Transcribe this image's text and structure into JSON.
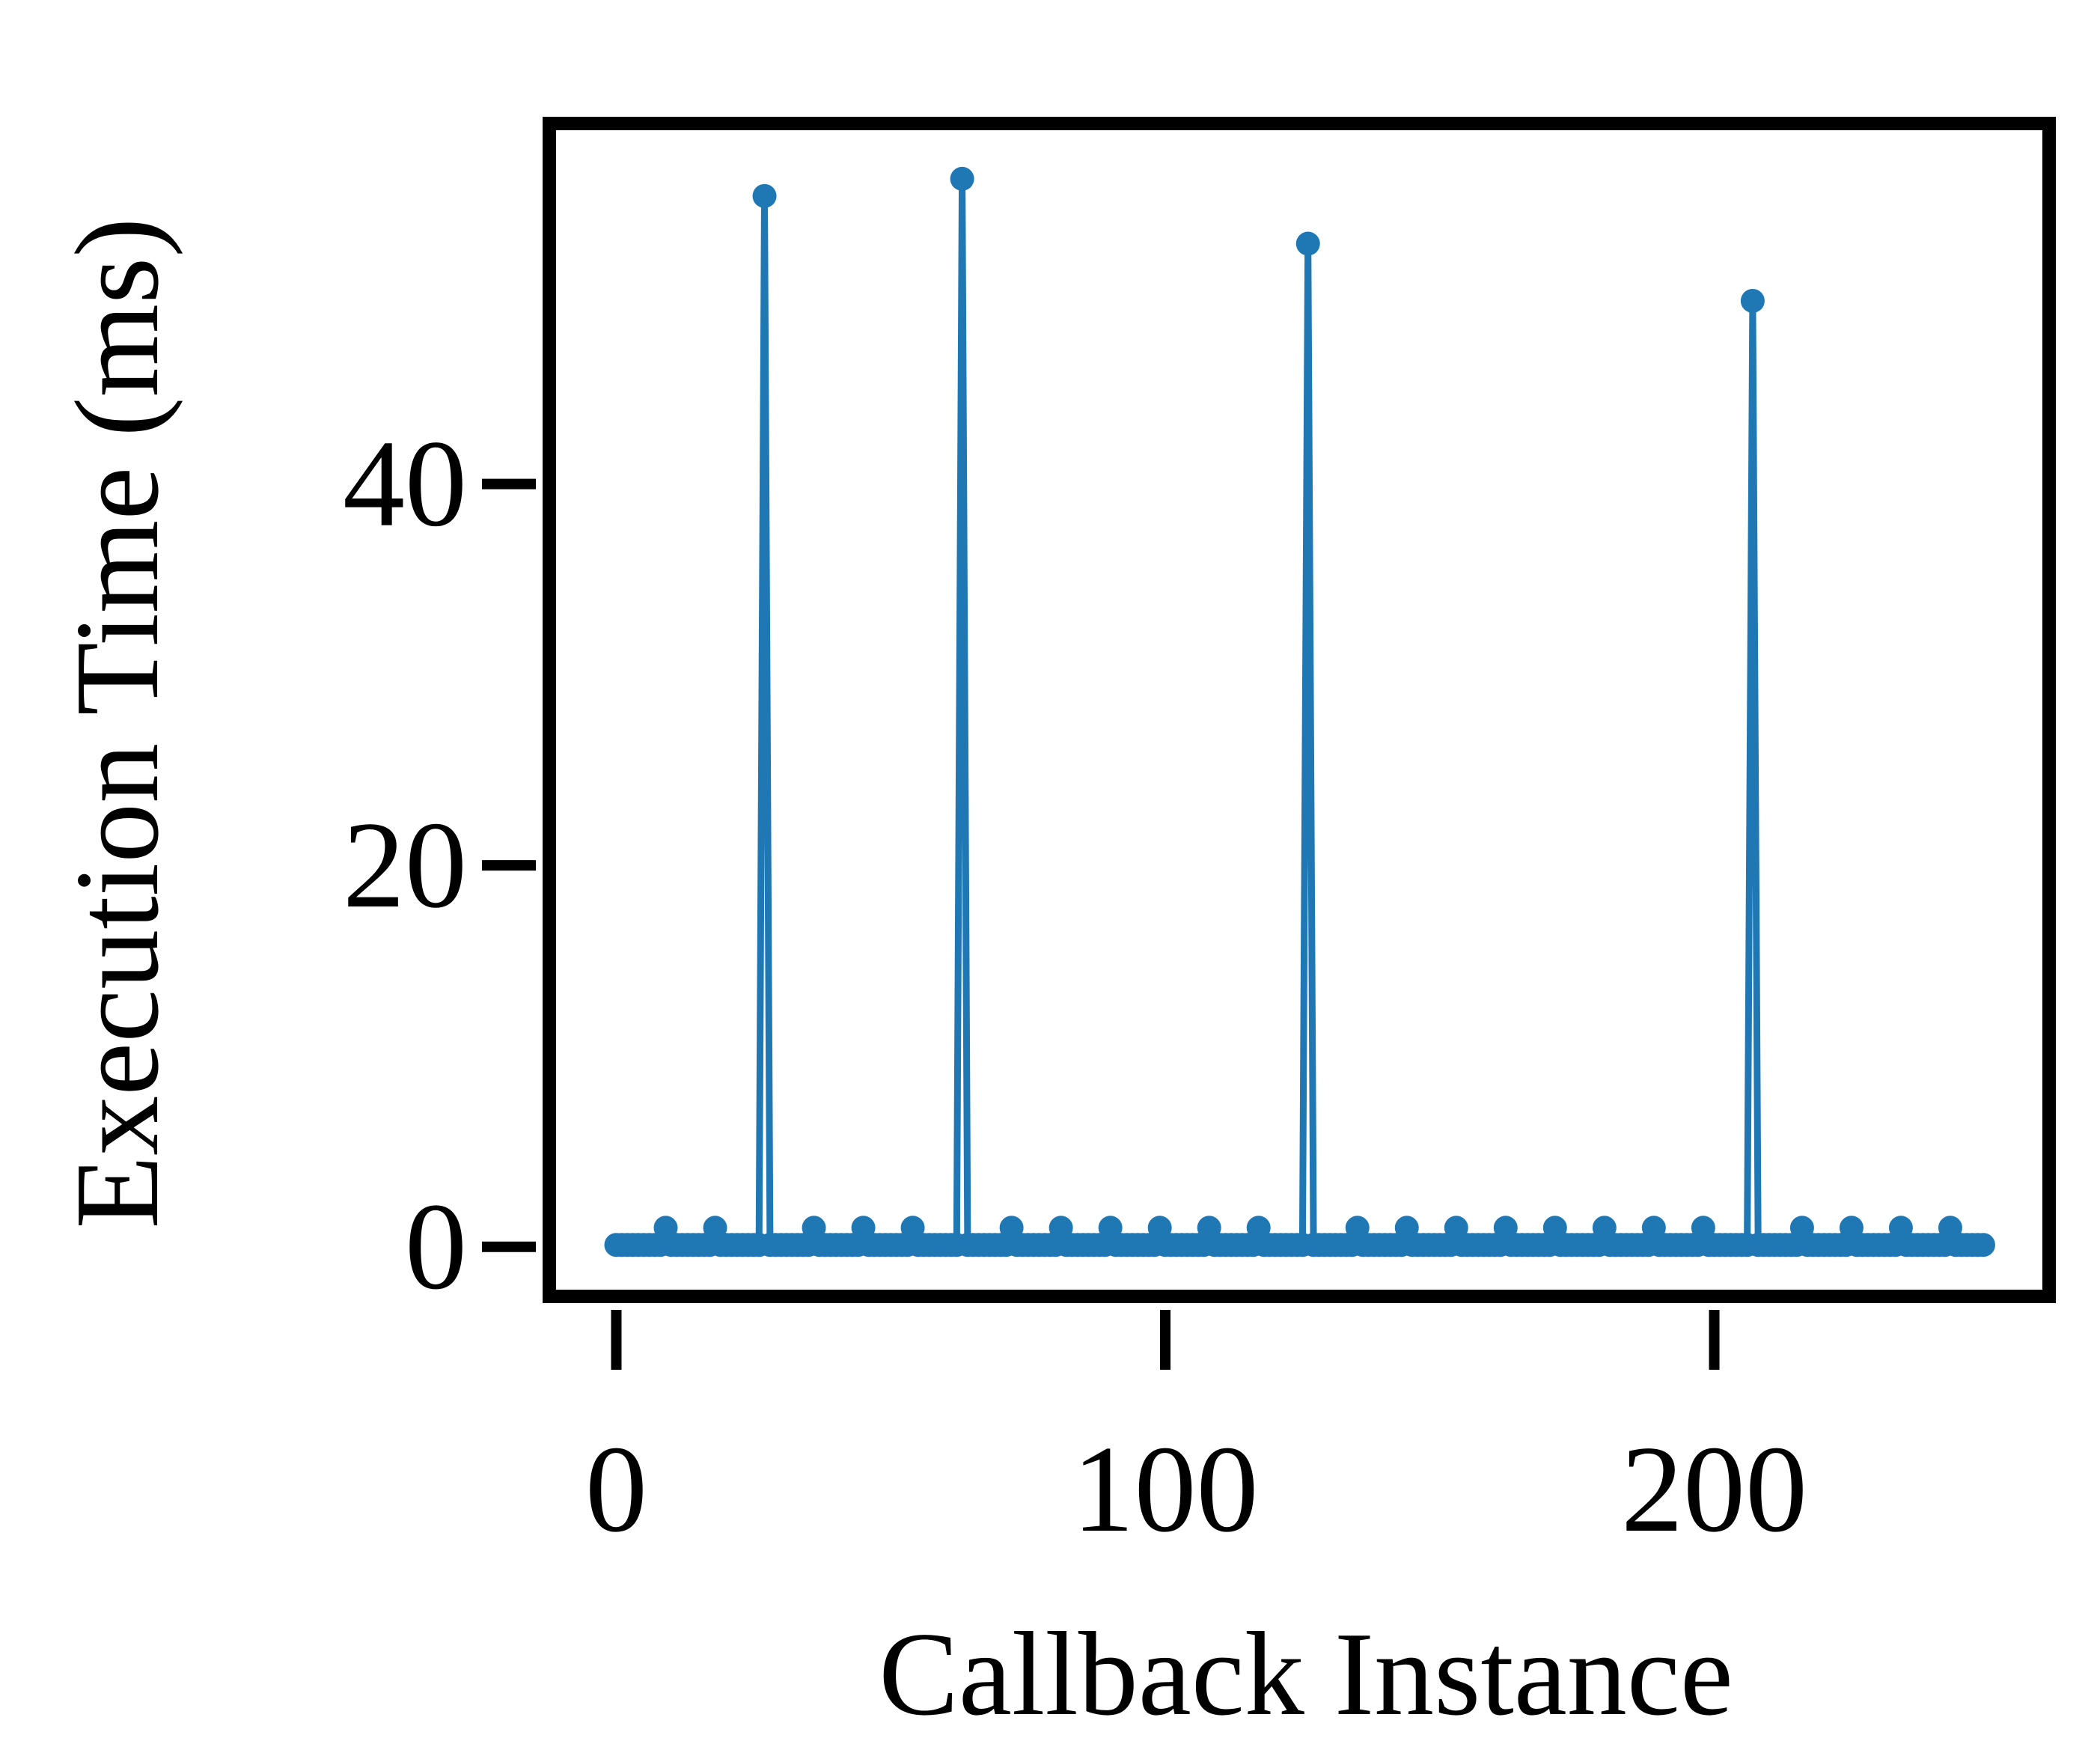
{
  "chart_data": {
    "type": "line",
    "xlabel": "Callback Instance",
    "ylabel": "Execution Time (ms)",
    "x": [
      0,
      1,
      2,
      3,
      4,
      5,
      6,
      7,
      8,
      9,
      10,
      11,
      12,
      13,
      14,
      15,
      16,
      17,
      18,
      19,
      20,
      21,
      22,
      23,
      24,
      25,
      26,
      27,
      28,
      29,
      30,
      31,
      32,
      33,
      34,
      35,
      36,
      37,
      38,
      39,
      40,
      41,
      42,
      43,
      44,
      45,
      46,
      47,
      48,
      49,
      50,
      51,
      52,
      53,
      54,
      55,
      56,
      57,
      58,
      59,
      60,
      61,
      62,
      63,
      64,
      65,
      66,
      67,
      68,
      69,
      70,
      71,
      72,
      73,
      74,
      75,
      76,
      77,
      78,
      79,
      80,
      81,
      82,
      83,
      84,
      85,
      86,
      87,
      88,
      89,
      90,
      91,
      92,
      93,
      94,
      95,
      96,
      97,
      98,
      99,
      100,
      101,
      102,
      103,
      104,
      105,
      106,
      107,
      108,
      109,
      110,
      111,
      112,
      113,
      114,
      115,
      116,
      117,
      118,
      119,
      120,
      121,
      122,
      123,
      124,
      125,
      126,
      127,
      128,
      129,
      130,
      131,
      132,
      133,
      134,
      135,
      136,
      137,
      138,
      139,
      140,
      141,
      142,
      143,
      144,
      145,
      146,
      147,
      148,
      149,
      150,
      151,
      152,
      153,
      154,
      155,
      156,
      157,
      158,
      159,
      160,
      161,
      162,
      163,
      164,
      165,
      166,
      167,
      168,
      169,
      170,
      171,
      172,
      173,
      174,
      175,
      176,
      177,
      178,
      179,
      180,
      181,
      182,
      183,
      184,
      185,
      186,
      187,
      188,
      189,
      190,
      191,
      192,
      193,
      194,
      195,
      196,
      197,
      198,
      199,
      200,
      201,
      202,
      203,
      204,
      205,
      206,
      207,
      208,
      209,
      210,
      211,
      212,
      213,
      214,
      215,
      216,
      217,
      218,
      219,
      220,
      221,
      222,
      223,
      224,
      225,
      226,
      227,
      228,
      229,
      230,
      231,
      232,
      233,
      234,
      235,
      236,
      237,
      238,
      239,
      240,
      241,
      242,
      243,
      244,
      245,
      246,
      247,
      248,
      249
    ],
    "series": [
      {
        "name": "Execution Time",
        "color": "#1f77b4",
        "values": [
          0.1,
          0.1,
          0.1,
          0.1,
          0.1,
          0.1,
          0.1,
          0.1,
          0.1,
          1.0,
          0.1,
          0.1,
          0.1,
          0.1,
          0.1,
          0.1,
          0.1,
          0.1,
          1.0,
          0.1,
          0.1,
          0.1,
          0.1,
          0.1,
          0.1,
          0.1,
          0.1,
          55.1,
          0.1,
          0.1,
          0.1,
          0.1,
          0.1,
          0.1,
          0.1,
          0.1,
          1.0,
          0.1,
          0.1,
          0.1,
          0.1,
          0.1,
          0.1,
          0.1,
          0.1,
          1.0,
          0.1,
          0.1,
          0.1,
          0.1,
          0.1,
          0.1,
          0.1,
          0.1,
          1.0,
          0.1,
          0.1,
          0.1,
          0.1,
          0.1,
          0.1,
          0.1,
          0.1,
          56.0,
          0.1,
          0.1,
          0.1,
          0.1,
          0.1,
          0.1,
          0.1,
          0.1,
          1.0,
          0.1,
          0.1,
          0.1,
          0.1,
          0.1,
          0.1,
          0.1,
          0.1,
          1.0,
          0.1,
          0.1,
          0.1,
          0.1,
          0.1,
          0.1,
          0.1,
          0.1,
          1.0,
          0.1,
          0.1,
          0.1,
          0.1,
          0.1,
          0.1,
          0.1,
          0.1,
          1.0,
          0.1,
          0.1,
          0.1,
          0.1,
          0.1,
          0.1,
          0.1,
          0.1,
          1.0,
          0.1,
          0.1,
          0.1,
          0.1,
          0.1,
          0.1,
          0.1,
          0.1,
          1.0,
          0.1,
          0.1,
          0.1,
          0.1,
          0.1,
          0.1,
          0.1,
          0.1,
          52.6,
          0.1,
          0.1,
          0.1,
          0.1,
          0.1,
          0.1,
          0.1,
          0.1,
          1.0,
          0.1,
          0.1,
          0.1,
          0.1,
          0.1,
          0.1,
          0.1,
          0.1,
          1.0,
          0.1,
          0.1,
          0.1,
          0.1,
          0.1,
          0.1,
          0.1,
          0.1,
          1.0,
          0.1,
          0.1,
          0.1,
          0.1,
          0.1,
          0.1,
          0.1,
          0.1,
          1.0,
          0.1,
          0.1,
          0.1,
          0.1,
          0.1,
          0.1,
          0.1,
          0.1,
          1.0,
          0.1,
          0.1,
          0.1,
          0.1,
          0.1,
          0.1,
          0.1,
          0.1,
          1.0,
          0.1,
          0.1,
          0.1,
          0.1,
          0.1,
          0.1,
          0.1,
          0.1,
          1.0,
          0.1,
          0.1,
          0.1,
          0.1,
          0.1,
          0.1,
          0.1,
          0.1,
          1.0,
          0.1,
          0.1,
          0.1,
          0.1,
          0.1,
          0.1,
          0.1,
          0.1,
          49.6,
          0.1,
          0.1,
          0.1,
          0.1,
          0.1,
          0.1,
          0.1,
          0.1,
          1.0,
          0.1,
          0.1,
          0.1,
          0.1,
          0.1,
          0.1,
          0.1,
          0.1,
          1.0,
          0.1,
          0.1,
          0.1,
          0.1,
          0.1,
          0.1,
          0.1,
          0.1,
          1.0,
          0.1,
          0.1,
          0.1,
          0.1,
          0.1,
          0.1,
          0.1,
          0.1,
          1.0,
          0.1,
          0.1,
          0.1,
          0.1,
          0.1,
          0.1
        ]
      }
    ],
    "xlim": [
      -12.2,
      261
    ],
    "ylim": [
      -2.6,
      58.9
    ],
    "xticks": [
      0,
      100,
      200
    ],
    "yticks": [
      0,
      20,
      40
    ],
    "grid": false
  }
}
